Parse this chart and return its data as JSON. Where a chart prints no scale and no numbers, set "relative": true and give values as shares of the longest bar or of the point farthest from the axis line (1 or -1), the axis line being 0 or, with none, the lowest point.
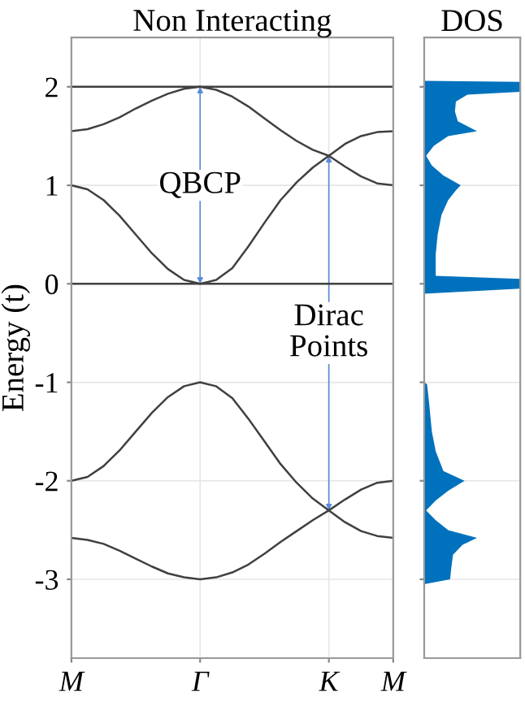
{
  "chart_data": [
    {
      "type": "line",
      "title": "Non Interacting",
      "ylabel": "Energy (t)",
      "categories": [
        "M",
        null,
        null,
        null,
        null,
        null,
        null,
        null,
        "Γ",
        null,
        null,
        null,
        null,
        null,
        null,
        null,
        "K",
        null,
        null,
        null,
        "M"
      ],
      "ylim": [
        -3.8,
        2.5
      ],
      "yticks": [
        -3,
        -2,
        -1,
        0,
        1,
        2
      ],
      "grid": true,
      "series": [
        {
          "color": "#404040",
          "values": [
            2,
            2,
            2,
            2,
            2,
            2,
            2,
            2,
            2,
            2,
            2,
            2,
            2,
            2,
            2,
            2,
            2,
            2,
            2,
            2,
            2
          ]
        },
        {
          "color": "#404040",
          "values": [
            1.55,
            1.57,
            1.62,
            1.69,
            1.78,
            1.86,
            1.93,
            1.98,
            2.0,
            1.97,
            1.9,
            1.8,
            1.68,
            1.56,
            1.45,
            1.36,
            1.3,
            1.19,
            1.09,
            1.02,
            1.0
          ]
        },
        {
          "color": "#404040",
          "values": [
            1.0,
            0.96,
            0.85,
            0.69,
            0.5,
            0.31,
            0.15,
            0.04,
            0,
            0.04,
            0.16,
            0.38,
            0.62,
            0.85,
            1.03,
            1.18,
            1.3,
            1.42,
            1.5,
            1.54,
            1.55
          ]
        },
        {
          "color": "#404040",
          "values": [
            0,
            0,
            0,
            0,
            0,
            0,
            0,
            0,
            0,
            0,
            0,
            0,
            0,
            0,
            0,
            0,
            0,
            0,
            0,
            0,
            0
          ]
        },
        {
          "color": "#404040",
          "values": [
            -2,
            -1.96,
            -1.85,
            -1.69,
            -1.5,
            -1.31,
            -1.15,
            -1.04,
            -1,
            -1.04,
            -1.16,
            -1.37,
            -1.6,
            -1.83,
            -2.02,
            -2.18,
            -2.3,
            -2.19,
            -2.09,
            -2.02,
            -2.0
          ]
        },
        {
          "color": "#404040",
          "values": [
            -2.58,
            -2.6,
            -2.64,
            -2.71,
            -2.79,
            -2.87,
            -2.94,
            -2.98,
            -3.0,
            -2.98,
            -2.93,
            -2.85,
            -2.74,
            -2.62,
            -2.51,
            -2.4,
            -2.3,
            -2.42,
            -2.51,
            -2.56,
            -2.58
          ]
        }
      ],
      "annotations": [
        "QBCP",
        "Dirac\nPoints"
      ]
    },
    {
      "type": "area",
      "title": "DOS",
      "orientation": "horizontal",
      "relative": true,
      "x": [
        -3.8,
        -3.05,
        -3.0,
        -2.9,
        -2.75,
        -2.65,
        -2.58,
        -2.5,
        -2.4,
        -2.3,
        -2.2,
        -2.1,
        -2.0,
        -1.9,
        -1.7,
        -1.5,
        -1.2,
        -1.02,
        -1.0,
        -0.1,
        -0.05,
        0.05,
        0.08,
        0.3,
        0.5,
        0.7,
        0.85,
        0.95,
        1.0,
        1.1,
        1.2,
        1.3,
        1.4,
        1.5,
        1.55,
        1.65,
        1.75,
        1.85,
        1.92,
        1.95,
        2.05,
        2.06,
        2.5
      ],
      "series": [
        {
          "color": "#0072bd",
          "values": [
            0,
            0,
            0.27,
            0.28,
            0.3,
            0.4,
            0.55,
            0.25,
            0.12,
            0.02,
            0.12,
            0.25,
            0.42,
            0.2,
            0.12,
            0.08,
            0.05,
            0.03,
            0,
            0,
            1,
            1,
            0.12,
            0.12,
            0.14,
            0.18,
            0.25,
            0.33,
            0.38,
            0.2,
            0.08,
            0.02,
            0.1,
            0.25,
            0.55,
            0.35,
            0.32,
            0.33,
            0.45,
            1,
            1,
            0,
            0
          ]
        }
      ],
      "ylim": [
        -3.8,
        2.5
      ],
      "yticks": [
        -3,
        -2,
        -1,
        0,
        1,
        2
      ],
      "tick_labels": false,
      "grid": "y"
    }
  ]
}
